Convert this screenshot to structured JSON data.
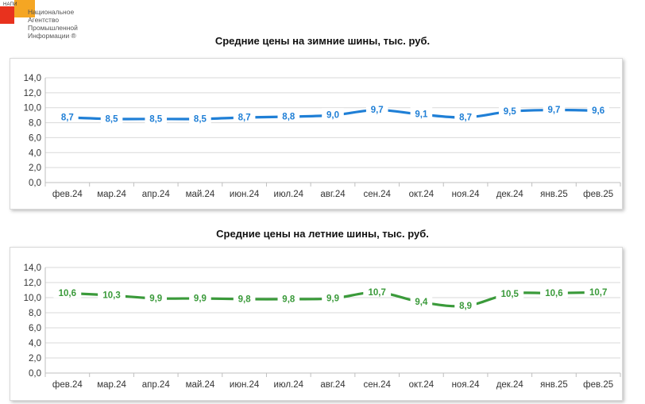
{
  "logo": {
    "abbr": "НАПИ",
    "name_lines": [
      "Национальное",
      "Агентство",
      "Промышленной",
      "Информации ®"
    ]
  },
  "chart_data": [
    {
      "type": "line",
      "title": "Средние цены на зимние шины, тыс. руб.",
      "categories": [
        "фев.24",
        "мар.24",
        "апр.24",
        "май.24",
        "июн.24",
        "июл.24",
        "авг.24",
        "сен.24",
        "окт.24",
        "ноя.24",
        "дек.24",
        "янв.25",
        "фев.25"
      ],
      "series": [
        {
          "values": [
            8.7,
            8.5,
            8.5,
            8.5,
            8.7,
            8.8,
            9.0,
            9.7,
            9.1,
            8.7,
            9.5,
            9.7,
            9.6
          ]
        }
      ],
      "data_labels": [
        "8,7",
        "8,5",
        "8,5",
        "8,5",
        "8,7",
        "8,8",
        "9,0",
        "9,7",
        "9,1",
        "8,7",
        "9,5",
        "9,7",
        "9,6"
      ],
      "y_ticks": [
        "0,0",
        "2,0",
        "4,0",
        "6,0",
        "8,0",
        "10,0",
        "12,0",
        "14,0"
      ],
      "ylim": [
        0,
        14
      ],
      "grid": true,
      "color": "#1f7fd6"
    },
    {
      "type": "line",
      "title": "Средние цены на летние шины, тыс. руб.",
      "categories": [
        "фев.24",
        "мар.24",
        "апр.24",
        "май.24",
        "июн.24",
        "июл.24",
        "авг.24",
        "сен.24",
        "окт.24",
        "ноя.24",
        "дек.24",
        "янв.25",
        "фев.25"
      ],
      "series": [
        {
          "values": [
            10.6,
            10.3,
            9.9,
            9.9,
            9.8,
            9.8,
            9.9,
            10.7,
            9.4,
            8.9,
            10.5,
            10.6,
            10.7
          ]
        }
      ],
      "data_labels": [
        "10,6",
        "10,3",
        "9,9",
        "9,9",
        "9,8",
        "9,8",
        "9,9",
        "10,7",
        "9,4",
        "8,9",
        "10,5",
        "10,6",
        "10,7"
      ],
      "y_ticks": [
        "0,0",
        "2,0",
        "4,0",
        "6,0",
        "8,0",
        "10,0",
        "12,0",
        "14,0"
      ],
      "ylim": [
        0,
        14
      ],
      "grid": true,
      "color": "#3a9a3a"
    }
  ]
}
